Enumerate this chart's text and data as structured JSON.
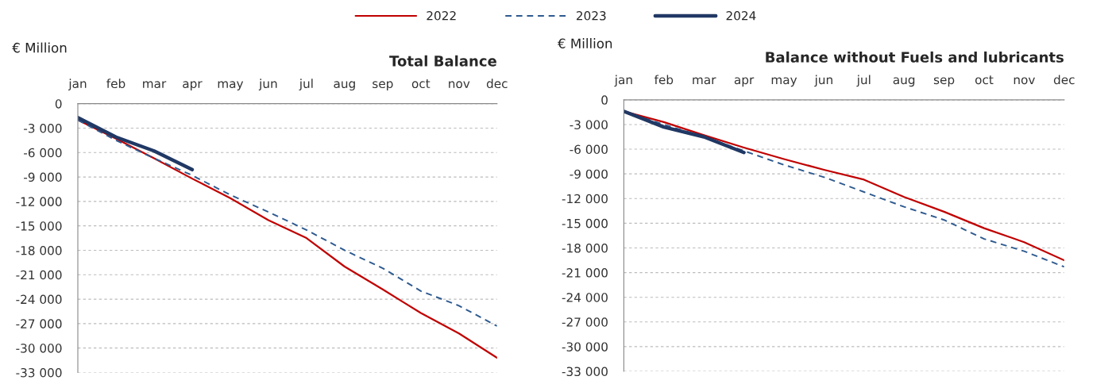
{
  "chart_data": [
    {
      "type": "line",
      "title": "Total Balance",
      "ylabel": "€ Million",
      "categories": [
        "jan",
        "feb",
        "mar",
        "apr",
        "may",
        "jun",
        "jul",
        "aug",
        "sep",
        "oct",
        "nov",
        "dec"
      ],
      "series": [
        {
          "name": "2022",
          "color": "#c00000",
          "line_style": "solid",
          "values": [
            -2000,
            -4300,
            -6700,
            -9200,
            -11600,
            -14300,
            -16500,
            -20000,
            -22800,
            -25700,
            -28200,
            -31200
          ]
        },
        {
          "name": "2023",
          "color": "#2e5a8f",
          "line_style": "dashed",
          "values": [
            -2000,
            -4500,
            -6700,
            -8800,
            -11200,
            -13300,
            -15500,
            -18000,
            -20200,
            -23000,
            -24800,
            -27300
          ]
        },
        {
          "name": "2024",
          "color": "#203864",
          "line_style": "solid",
          "values": [
            -1700,
            -4100,
            -5800,
            -8100,
            null,
            null,
            null,
            null,
            null,
            null,
            null,
            null
          ]
        }
      ],
      "ylim": [
        -33000,
        0
      ],
      "yticks": [
        0,
        {
          "value": -3000,
          "label": "-3 000"
        },
        {
          "value": -6000,
          "label": "-6 000"
        },
        {
          "value": -9000,
          "label": "-9 000"
        },
        {
          "value": -12000,
          "label": "-12 000"
        },
        {
          "value": -15000,
          "label": "-15 000"
        },
        {
          "value": -18000,
          "label": "-18 000"
        },
        {
          "value": -21000,
          "label": "-21 000"
        },
        {
          "value": -24000,
          "label": "-24 000"
        },
        {
          "value": -27000,
          "label": "-27 000"
        },
        {
          "value": -30000,
          "label": "-30 000"
        },
        {
          "value": -33000,
          "label": "-33 000"
        }
      ],
      "grid": "y",
      "legend": "top",
      "marker": "none"
    },
    {
      "type": "line",
      "title": "Balance without Fuels and lubricants",
      "ylabel": "€ Million",
      "categories": [
        "jan",
        "feb",
        "mar",
        "apr",
        "may",
        "jun",
        "jul",
        "aug",
        "sep",
        "oct",
        "nov",
        "dec"
      ],
      "series": [
        {
          "color": "#c00000",
          "line_style": "solid",
          "values": [
            -1400,
            -2700,
            -4300,
            -5800,
            -7200,
            -8500,
            -9700,
            -11800,
            -13600,
            -15600,
            -17300,
            -19500
          ]
        },
        {
          "color": "#2e5a8f",
          "line_style": "dashed",
          "values": [
            -1400,
            -3000,
            -4500,
            -6200,
            -7900,
            -9400,
            -11200,
            -13000,
            -14600,
            -16900,
            -18400,
            -20300
          ]
        },
        {
          "color": "#203864",
          "line_style": "solid",
          "values": [
            -1400,
            -3300,
            -4500,
            -6400,
            null,
            null,
            null,
            null,
            null,
            null,
            null,
            null
          ]
        }
      ],
      "ylim": [
        -33000,
        0
      ],
      "yticks": [
        0,
        {
          "value": -3000,
          "label": "-3 000"
        },
        {
          "value": -6000,
          "label": "-6 000"
        },
        {
          "value": -9000,
          "label": "-9 000"
        },
        {
          "value": -12000,
          "label": "-12 000"
        },
        {
          "value": -15000,
          "label": "-15 000"
        },
        {
          "value": -18000,
          "label": "-18 000"
        },
        {
          "value": -21000,
          "label": "-21 000"
        },
        {
          "value": -24000,
          "label": "-24 000"
        },
        {
          "value": -27000,
          "label": "-27 000"
        },
        {
          "value": -30000,
          "label": "-30 000"
        },
        {
          "value": -33000,
          "label": "-33 000"
        }
      ],
      "grid": "y",
      "marker": "none"
    }
  ]
}
